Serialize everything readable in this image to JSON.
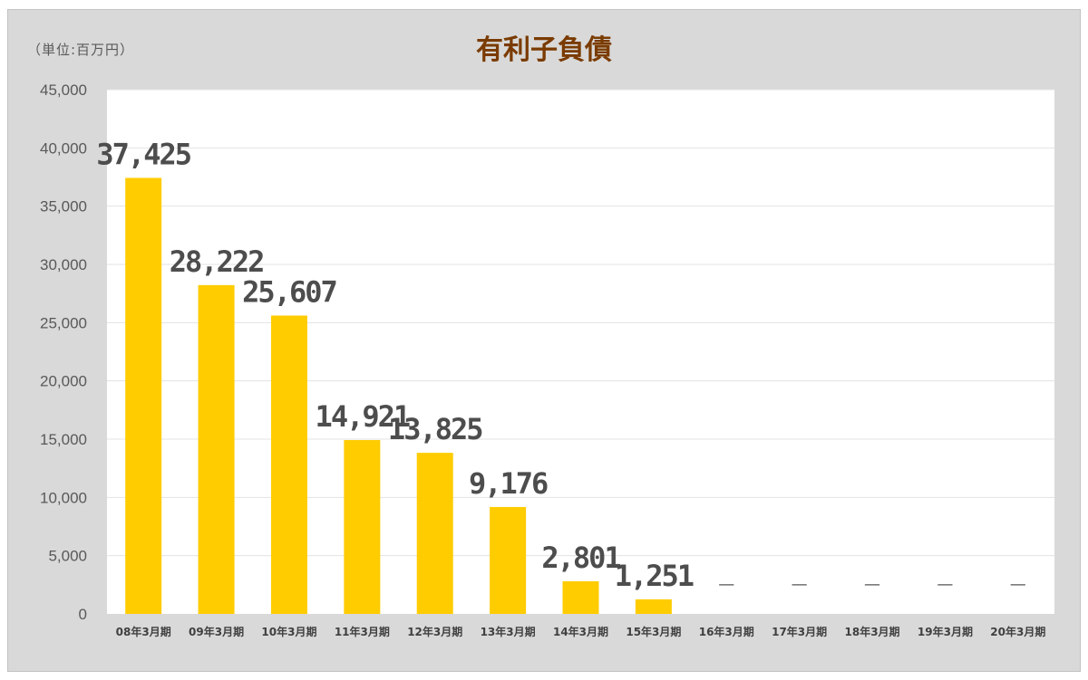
{
  "chart_data": {
    "type": "bar",
    "title": "有利子負債",
    "unit_label": "（単位:百万円）",
    "categories": [
      "08年3月期",
      "09年3月期",
      "10年3月期",
      "11年3月期",
      "12年3月期",
      "13年3月期",
      "14年3月期",
      "15年3月期",
      "16年3月期",
      "17年3月期",
      "18年3月期",
      "19年3月期",
      "20年3月期"
    ],
    "values": [
      37425,
      28222,
      25607,
      14921,
      13825,
      9176,
      2801,
      1251,
      null,
      null,
      null,
      null,
      null
    ],
    "data_labels": [
      "37,425",
      "28,222",
      "25,607",
      "14,921",
      "13,825",
      "9,176",
      "2,801",
      "1,251",
      "—",
      "—",
      "—",
      "—",
      "—"
    ],
    "ylim": [
      0,
      45000
    ],
    "yticks": [
      0,
      5000,
      10000,
      15000,
      20000,
      25000,
      30000,
      35000,
      40000,
      45000
    ],
    "ytick_labels": [
      "0",
      "5,000",
      "10,000",
      "15,000",
      "20,000",
      "25,000",
      "30,000",
      "35,000",
      "40,000",
      "45,000"
    ],
    "grid": true,
    "legend": "none",
    "bar_color": "#ffcc00",
    "dash_color": "#555555"
  }
}
